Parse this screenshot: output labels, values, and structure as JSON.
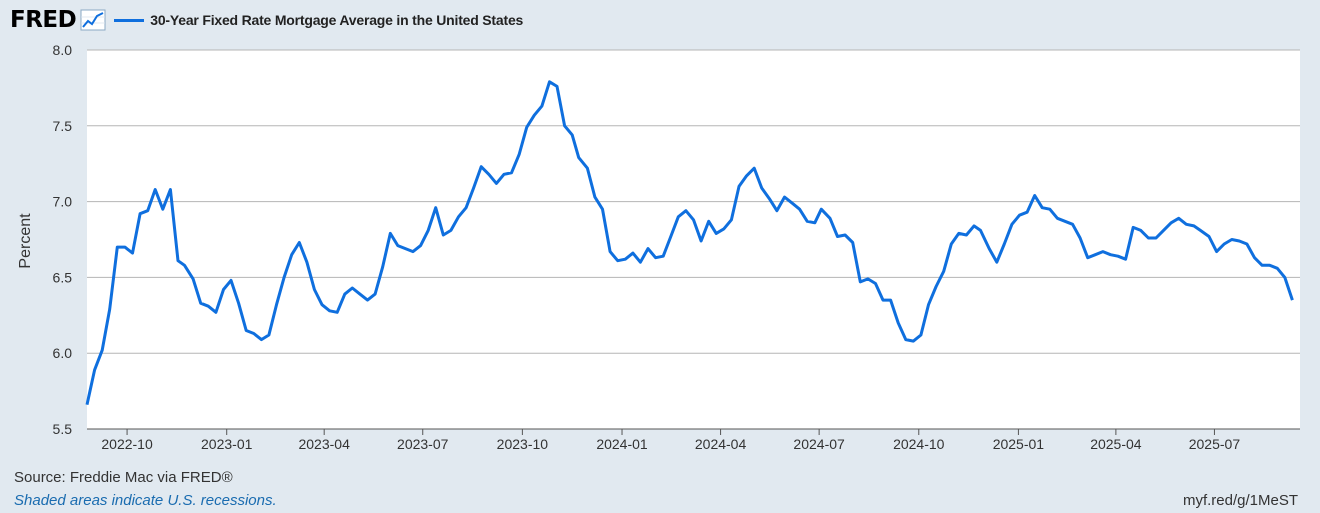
{
  "header": {
    "logo_text": "FRED",
    "logo_icon": "trend-chart-icon",
    "legend_label": "30-Year Fixed Rate Mortgage Average in the United States"
  },
  "footer": {
    "source": "Source: Freddie Mac via FRED®",
    "recession_note": "Shaded areas indicate U.S. recessions.",
    "short_url": "myf.red/g/1MeST"
  },
  "colors": {
    "series": "#0f6fde",
    "background": "#e1e9f0",
    "plot_background": "#ffffff",
    "gridline": "#b5b5b5"
  },
  "chart_data": {
    "type": "line",
    "title": "",
    "xlabel": "",
    "ylabel": "Percent",
    "x_axis_type": "date",
    "xlim": [
      "2022-08-25",
      "2025-09-18"
    ],
    "ylim": [
      5.5,
      8.0
    ],
    "yticks": [
      5.5,
      6.0,
      6.5,
      7.0,
      7.5,
      8.0
    ],
    "ytick_labels": [
      "5.5",
      "6.0",
      "6.5",
      "7.0",
      "7.5",
      "8.0"
    ],
    "xticks": [
      "2022-10-01",
      "2023-01-01",
      "2023-04-01",
      "2023-07-01",
      "2023-10-01",
      "2024-01-01",
      "2024-04-01",
      "2024-07-01",
      "2024-10-01",
      "2025-01-01",
      "2025-04-01",
      "2025-07-01"
    ],
    "xtick_labels": [
      "2022-10",
      "2023-01",
      "2023-04",
      "2023-07",
      "2023-10",
      "2024-01",
      "2024-04",
      "2024-07",
      "2024-10",
      "2025-01",
      "2025-04",
      "2025-07"
    ],
    "grid": true,
    "legend_position": "top-left",
    "series": [
      {
        "name": "30-Year Fixed Rate Mortgage Average in the United States",
        "color": "#0f6fde",
        "points": [
          [
            "2022-08-25",
            5.66
          ],
          [
            "2022-09-01",
            5.89
          ],
          [
            "2022-09-08",
            6.02
          ],
          [
            "2022-09-15",
            6.29
          ],
          [
            "2022-09-22",
            6.7
          ],
          [
            "2022-09-29",
            6.7
          ],
          [
            "2022-10-06",
            6.66
          ],
          [
            "2022-10-13",
            6.92
          ],
          [
            "2022-10-20",
            6.94
          ],
          [
            "2022-10-27",
            7.08
          ],
          [
            "2022-11-03",
            6.95
          ],
          [
            "2022-11-10",
            7.08
          ],
          [
            "2022-11-17",
            6.61
          ],
          [
            "2022-11-23",
            6.58
          ],
          [
            "2022-12-01",
            6.49
          ],
          [
            "2022-12-08",
            6.33
          ],
          [
            "2022-12-15",
            6.31
          ],
          [
            "2022-12-22",
            6.27
          ],
          [
            "2022-12-29",
            6.42
          ],
          [
            "2023-01-05",
            6.48
          ],
          [
            "2023-01-12",
            6.33
          ],
          [
            "2023-01-19",
            6.15
          ],
          [
            "2023-01-26",
            6.13
          ],
          [
            "2023-02-02",
            6.09
          ],
          [
            "2023-02-09",
            6.12
          ],
          [
            "2023-02-16",
            6.32
          ],
          [
            "2023-02-23",
            6.5
          ],
          [
            "2023-03-02",
            6.65
          ],
          [
            "2023-03-09",
            6.73
          ],
          [
            "2023-03-16",
            6.6
          ],
          [
            "2023-03-23",
            6.42
          ],
          [
            "2023-03-30",
            6.32
          ],
          [
            "2023-04-06",
            6.28
          ],
          [
            "2023-04-13",
            6.27
          ],
          [
            "2023-04-20",
            6.39
          ],
          [
            "2023-04-27",
            6.43
          ],
          [
            "2023-05-04",
            6.39
          ],
          [
            "2023-05-11",
            6.35
          ],
          [
            "2023-05-18",
            6.39
          ],
          [
            "2023-05-25",
            6.57
          ],
          [
            "2023-06-01",
            6.79
          ],
          [
            "2023-06-08",
            6.71
          ],
          [
            "2023-06-15",
            6.69
          ],
          [
            "2023-06-22",
            6.67
          ],
          [
            "2023-06-29",
            6.71
          ],
          [
            "2023-07-06",
            6.81
          ],
          [
            "2023-07-13",
            6.96
          ],
          [
            "2023-07-20",
            6.78
          ],
          [
            "2023-07-27",
            6.81
          ],
          [
            "2023-08-03",
            6.9
          ],
          [
            "2023-08-10",
            6.96
          ],
          [
            "2023-08-17",
            7.09
          ],
          [
            "2023-08-24",
            7.23
          ],
          [
            "2023-08-31",
            7.18
          ],
          [
            "2023-09-07",
            7.12
          ],
          [
            "2023-09-14",
            7.18
          ],
          [
            "2023-09-21",
            7.19
          ],
          [
            "2023-09-28",
            7.31
          ],
          [
            "2023-10-05",
            7.49
          ],
          [
            "2023-10-12",
            7.57
          ],
          [
            "2023-10-19",
            7.63
          ],
          [
            "2023-10-26",
            7.79
          ],
          [
            "2023-11-02",
            7.76
          ],
          [
            "2023-11-09",
            7.5
          ],
          [
            "2023-11-16",
            7.44
          ],
          [
            "2023-11-22",
            7.29
          ],
          [
            "2023-11-30",
            7.22
          ],
          [
            "2023-12-07",
            7.03
          ],
          [
            "2023-12-14",
            6.95
          ],
          [
            "2023-12-21",
            6.67
          ],
          [
            "2023-12-28",
            6.61
          ],
          [
            "2024-01-04",
            6.62
          ],
          [
            "2024-01-11",
            6.66
          ],
          [
            "2024-01-18",
            6.6
          ],
          [
            "2024-01-25",
            6.69
          ],
          [
            "2024-02-01",
            6.63
          ],
          [
            "2024-02-08",
            6.64
          ],
          [
            "2024-02-15",
            6.77
          ],
          [
            "2024-02-22",
            6.9
          ],
          [
            "2024-02-29",
            6.94
          ],
          [
            "2024-03-07",
            6.88
          ],
          [
            "2024-03-14",
            6.74
          ],
          [
            "2024-03-21",
            6.87
          ],
          [
            "2024-03-28",
            6.79
          ],
          [
            "2024-04-04",
            6.82
          ],
          [
            "2024-04-11",
            6.88
          ],
          [
            "2024-04-18",
            7.1
          ],
          [
            "2024-04-25",
            7.17
          ],
          [
            "2024-05-02",
            7.22
          ],
          [
            "2024-05-09",
            7.09
          ],
          [
            "2024-05-16",
            7.02
          ],
          [
            "2024-05-23",
            6.94
          ],
          [
            "2024-05-30",
            7.03
          ],
          [
            "2024-06-06",
            6.99
          ],
          [
            "2024-06-13",
            6.95
          ],
          [
            "2024-06-20",
            6.87
          ],
          [
            "2024-06-27",
            6.86
          ],
          [
            "2024-07-03",
            6.95
          ],
          [
            "2024-07-11",
            6.89
          ],
          [
            "2024-07-18",
            6.77
          ],
          [
            "2024-07-25",
            6.78
          ],
          [
            "2024-08-01",
            6.73
          ],
          [
            "2024-08-08",
            6.47
          ],
          [
            "2024-08-15",
            6.49
          ],
          [
            "2024-08-22",
            6.46
          ],
          [
            "2024-08-29",
            6.35
          ],
          [
            "2024-09-05",
            6.35
          ],
          [
            "2024-09-12",
            6.2
          ],
          [
            "2024-09-19",
            6.09
          ],
          [
            "2024-09-26",
            6.08
          ],
          [
            "2024-10-03",
            6.12
          ],
          [
            "2024-10-10",
            6.32
          ],
          [
            "2024-10-17",
            6.44
          ],
          [
            "2024-10-24",
            6.54
          ],
          [
            "2024-10-31",
            6.72
          ],
          [
            "2024-11-07",
            6.79
          ],
          [
            "2024-11-14",
            6.78
          ],
          [
            "2024-11-21",
            6.84
          ],
          [
            "2024-11-27",
            6.81
          ],
          [
            "2024-12-05",
            6.69
          ],
          [
            "2024-12-12",
            6.6
          ],
          [
            "2024-12-19",
            6.72
          ],
          [
            "2024-12-26",
            6.85
          ],
          [
            "2025-01-02",
            6.91
          ],
          [
            "2025-01-09",
            6.93
          ],
          [
            "2025-01-16",
            7.04
          ],
          [
            "2025-01-23",
            6.96
          ],
          [
            "2025-01-30",
            6.95
          ],
          [
            "2025-02-06",
            6.89
          ],
          [
            "2025-02-13",
            6.87
          ],
          [
            "2025-02-20",
            6.85
          ],
          [
            "2025-02-27",
            6.76
          ],
          [
            "2025-03-06",
            6.63
          ],
          [
            "2025-03-13",
            6.65
          ],
          [
            "2025-03-20",
            6.67
          ],
          [
            "2025-03-27",
            6.65
          ],
          [
            "2025-04-03",
            6.64
          ],
          [
            "2025-04-10",
            6.62
          ],
          [
            "2025-04-17",
            6.83
          ],
          [
            "2025-04-24",
            6.81
          ],
          [
            "2025-05-01",
            6.76
          ],
          [
            "2025-05-08",
            6.76
          ],
          [
            "2025-05-15",
            6.81
          ],
          [
            "2025-05-22",
            6.86
          ],
          [
            "2025-05-29",
            6.89
          ],
          [
            "2025-06-05",
            6.85
          ],
          [
            "2025-06-12",
            6.84
          ],
          [
            "2025-06-18",
            6.81
          ],
          [
            "2025-06-26",
            6.77
          ],
          [
            "2025-07-03",
            6.67
          ],
          [
            "2025-07-10",
            6.72
          ],
          [
            "2025-07-17",
            6.75
          ],
          [
            "2025-07-24",
            6.74
          ],
          [
            "2025-07-31",
            6.72
          ],
          [
            "2025-08-07",
            6.63
          ],
          [
            "2025-08-14",
            6.58
          ],
          [
            "2025-08-21",
            6.58
          ],
          [
            "2025-08-28",
            6.56
          ],
          [
            "2025-09-04",
            6.5
          ],
          [
            "2025-09-11",
            6.35
          ]
        ]
      }
    ]
  }
}
